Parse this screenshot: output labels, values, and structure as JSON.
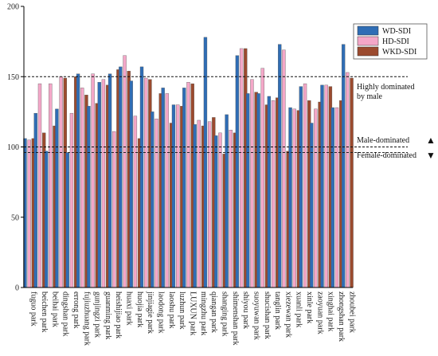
{
  "chart_data": {
    "type": "bar",
    "ylim": [
      0,
      200
    ],
    "yticks": [
      0,
      50,
      100,
      150,
      200
    ],
    "grid": false,
    "legend_position": "top-right",
    "categories": [
      "fuguo park",
      "beichen park",
      "beihai park",
      "dingshan park",
      "errong park",
      "fujiuzhuang park",
      "gunjingzi park",
      "guanming park",
      "heishijiao park",
      "huaxi park",
      "huojia park",
      "jinjiagie park",
      "laodong park",
      "laoshu park",
      "luzhun park",
      "LUXUN park",
      "mingzhu park",
      "qiangan park",
      "shanging park",
      "shimenshan park",
      "shiyou park",
      "suoyuwan park",
      "shucishan park",
      "tanglin park",
      "xiezewan park",
      "xuanli park",
      "xinle park",
      "zaoyuan park",
      "xinghai park",
      "zhongshan park",
      "zhoubei park"
    ],
    "series": [
      {
        "name": "WD-SDI",
        "color": "#2f6db5",
        "values": [
          106,
          124,
          97,
          127,
          96,
          152,
          129,
          146,
          152,
          157,
          147,
          157,
          125,
          142,
          130,
          142,
          116,
          178,
          108,
          123,
          165,
          138,
          138,
          136,
          173,
          128,
          143,
          117,
          144,
          128,
          173
        ]
      },
      {
        "name": "HD-SDI",
        "color": "#f4a7c8",
        "values": [
          105,
          145,
          145,
          150,
          124,
          142,
          152,
          148,
          111,
          165,
          122,
          149,
          120,
          138,
          130,
          146,
          119,
          118,
          110,
          112,
          170,
          148,
          156,
          133,
          169,
          127,
          145,
          127,
          144,
          128,
          153
        ]
      },
      {
        "name": "WKD-SDI",
        "color": "#9b4a2e",
        "values": [
          106,
          110,
          115,
          149,
          150,
          137,
          131,
          144,
          155,
          154,
          106,
          148,
          138,
          117,
          129,
          145,
          115,
          121,
          95,
          110,
          170,
          139,
          130,
          135,
          97,
          126,
          133,
          132,
          143,
          133,
          149
        ]
      }
    ],
    "reference_lines": [
      {
        "value": 150,
        "label": "Highly dominated by male"
      },
      {
        "value": 100,
        "label": "Male-dominated",
        "label2": "Female-dominated"
      },
      {
        "value": 96
      }
    ]
  },
  "legend": {
    "items": [
      {
        "label": "WD-SDI",
        "color": "#2f6db5"
      },
      {
        "label": "HD-SDI",
        "color": "#f4a7c8"
      },
      {
        "label": "WKD-SDI",
        "color": "#9b4a2e"
      }
    ]
  },
  "annotations": {
    "highly_line1": "Highly dominated",
    "highly_line2": "by male",
    "male": "Male-dominated",
    "female": "Female-dominated",
    "up_arrow": "▲",
    "down_arrow": "▼"
  }
}
